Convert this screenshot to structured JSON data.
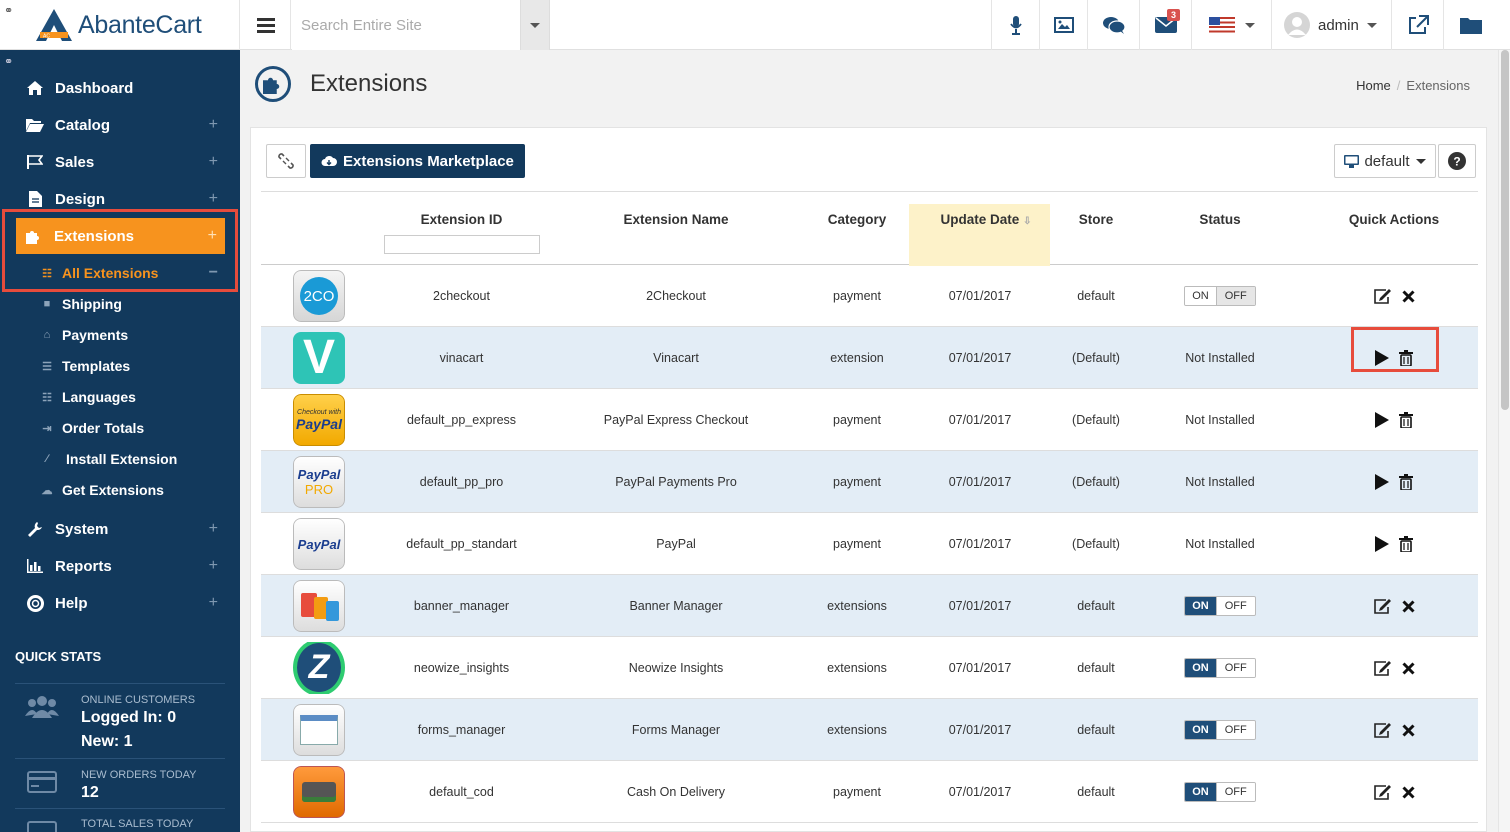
{
  "app": {
    "name": "AbanteCart"
  },
  "topbar": {
    "search_placeholder": "Search Entire Site",
    "messages_count": "3",
    "user_name": "admin"
  },
  "sidebar": {
    "items": [
      {
        "label": "Dashboard"
      },
      {
        "label": "Catalog"
      },
      {
        "label": "Sales"
      },
      {
        "label": "Design"
      },
      {
        "label": "Extensions"
      },
      {
        "label": "System"
      },
      {
        "label": "Reports"
      },
      {
        "label": "Help"
      }
    ],
    "sub_items": [
      {
        "label": "All Extensions"
      },
      {
        "label": "Shipping"
      },
      {
        "label": "Payments"
      },
      {
        "label": "Templates"
      },
      {
        "label": "Languages"
      },
      {
        "label": "Order Totals"
      },
      {
        "label": "Install Extension"
      },
      {
        "label": "Get Extensions"
      }
    ],
    "quick_stats": {
      "title": "QUICK STATS",
      "online_label": "ONLINE CUSTOMERS",
      "logged_in": "Logged In: 0",
      "new": "New: 1",
      "orders_label": "NEW ORDERS TODAY",
      "orders_value": "12",
      "sales_label": "TOTAL SALES TODAY"
    }
  },
  "page": {
    "title": "Extensions",
    "breadcrumb": [
      "Home",
      "Extensions"
    ],
    "marketplace_label": "Extensions Marketplace",
    "store_select": "default"
  },
  "table": {
    "headers": [
      "Extension ID",
      "Extension Name",
      "Category",
      "Update Date",
      "Store",
      "Status",
      "Quick Actions"
    ],
    "rows": [
      {
        "id": "2checkout",
        "name": "2Checkout",
        "category": "payment",
        "date": "07/01/2017",
        "store": "default",
        "status": "OFF",
        "icon": "2co-icon",
        "icon_text": "2CO"
      },
      {
        "id": "vinacart",
        "name": "Vinacart",
        "category": "extension",
        "date": "07/01/2017",
        "store": "(Default)",
        "status": "Not Installed",
        "icon": "vinacart-icon",
        "icon_text": "V"
      },
      {
        "id": "default_pp_express",
        "name": "PayPal Express Checkout",
        "category": "payment",
        "date": "07/01/2017",
        "store": "(Default)",
        "status": "Not Installed",
        "icon": "paypal-express-icon",
        "icon_text": "PayPal"
      },
      {
        "id": "default_pp_pro",
        "name": "PayPal Payments Pro",
        "category": "payment",
        "date": "07/01/2017",
        "store": "(Default)",
        "status": "Not Installed",
        "icon": "paypal-pro-icon",
        "icon_text": "PayPal"
      },
      {
        "id": "default_pp_standart",
        "name": "PayPal",
        "category": "payment",
        "date": "07/01/2017",
        "store": "(Default)",
        "status": "Not Installed",
        "icon": "paypal-icon",
        "icon_text": "PayPal"
      },
      {
        "id": "banner_manager",
        "name": "Banner Manager",
        "category": "extensions",
        "date": "07/01/2017",
        "store": "default",
        "status": "ON",
        "icon": "banner-icon",
        "icon_text": ""
      },
      {
        "id": "neowize_insights",
        "name": "Neowize Insights",
        "category": "extensions",
        "date": "07/01/2017",
        "store": "default",
        "status": "ON",
        "icon": "neowize-icon",
        "icon_text": "Z"
      },
      {
        "id": "forms_manager",
        "name": "Forms Manager",
        "category": "extensions",
        "date": "07/01/2017",
        "store": "default",
        "status": "ON",
        "icon": "forms-icon",
        "icon_text": ""
      },
      {
        "id": "default_cod",
        "name": "Cash On Delivery",
        "category": "payment",
        "date": "07/01/2017",
        "store": "default",
        "status": "ON",
        "icon": "cod-icon",
        "icon_text": ""
      }
    ],
    "toggle_on": "ON",
    "toggle_off": "OFF"
  },
  "extra": {
    "checkout_with": "Checkout with",
    "pro": "PRO"
  },
  "colors": {
    "sidebar": "#12395c",
    "accent": "#f7931e",
    "primary": "#1f4e79",
    "highlight": "#e74c3c"
  }
}
